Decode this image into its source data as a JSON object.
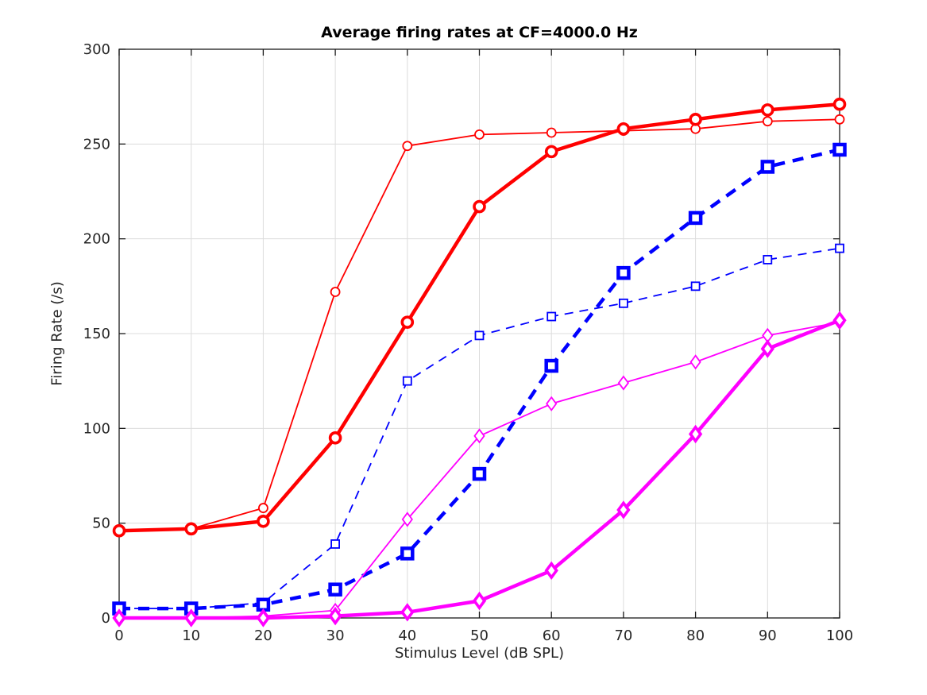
{
  "figure": {
    "background_color": "#ffffff",
    "axis_color": "#1a1a1a",
    "grid_color": "#dcdcdc",
    "text_color": "#262626"
  },
  "chart_data": {
    "type": "line",
    "title": "Average firing rates at CF=4000.0 Hz",
    "xlabel": "Stimulus Level (dB SPL)",
    "ylabel": "Firing Rate (/s)",
    "xlim": [
      0,
      100
    ],
    "ylim": [
      0,
      300
    ],
    "xticks": [
      0,
      10,
      20,
      30,
      40,
      50,
      60,
      70,
      80,
      90,
      100
    ],
    "yticks": [
      0,
      50,
      100,
      150,
      200,
      250,
      300
    ],
    "grid": true,
    "legend_position": "none",
    "x": [
      0,
      10,
      20,
      30,
      40,
      50,
      60,
      70,
      80,
      90,
      100
    ],
    "series": [
      {
        "name": "red-thin-open-circle",
        "color": "#ff0000",
        "line_width": 1.8,
        "line_style": "solid",
        "marker": "circle",
        "marker_size": 11,
        "marker_stroke": 1.8,
        "values": [
          46,
          47,
          58,
          172,
          249,
          255,
          256,
          257,
          258,
          262,
          263
        ]
      },
      {
        "name": "red-thick-open-circle",
        "color": "#ff0000",
        "line_width": 4.5,
        "line_style": "solid",
        "marker": "circle",
        "marker_size": 13,
        "marker_stroke": 3.6,
        "values": [
          46,
          47,
          51,
          95,
          156,
          217,
          246,
          258,
          263,
          268,
          271
        ]
      },
      {
        "name": "blue-thin-dashed-open-square",
        "color": "#0000ff",
        "line_width": 1.8,
        "line_style": "dashed",
        "marker": "square",
        "marker_size": 10,
        "marker_stroke": 1.8,
        "values": [
          5,
          5,
          8,
          39,
          125,
          149,
          159,
          166,
          175,
          189,
          195
        ]
      },
      {
        "name": "blue-thick-dashed-square",
        "color": "#0000ff",
        "line_width": 4.5,
        "line_style": "dashed",
        "marker": "square",
        "marker_size": 13,
        "marker_stroke": 4.5,
        "values": [
          5,
          5,
          7,
          15,
          34,
          76,
          133,
          182,
          211,
          238,
          247
        ]
      },
      {
        "name": "magenta-thin-open-diamond",
        "color": "#ff00ff",
        "line_width": 1.8,
        "line_style": "solid",
        "marker": "diamond",
        "marker_size": 13,
        "marker_stroke": 1.8,
        "values": [
          0,
          0,
          1,
          4,
          52,
          96,
          113,
          124,
          135,
          149,
          156
        ]
      },
      {
        "name": "magenta-thick-diamond",
        "color": "#ff00ff",
        "line_width": 4.5,
        "line_style": "solid",
        "marker": "diamond",
        "marker_size": 14,
        "marker_stroke": 3.6,
        "values": [
          0,
          0,
          0,
          1,
          3,
          9,
          25,
          57,
          97,
          142,
          157
        ]
      }
    ]
  }
}
